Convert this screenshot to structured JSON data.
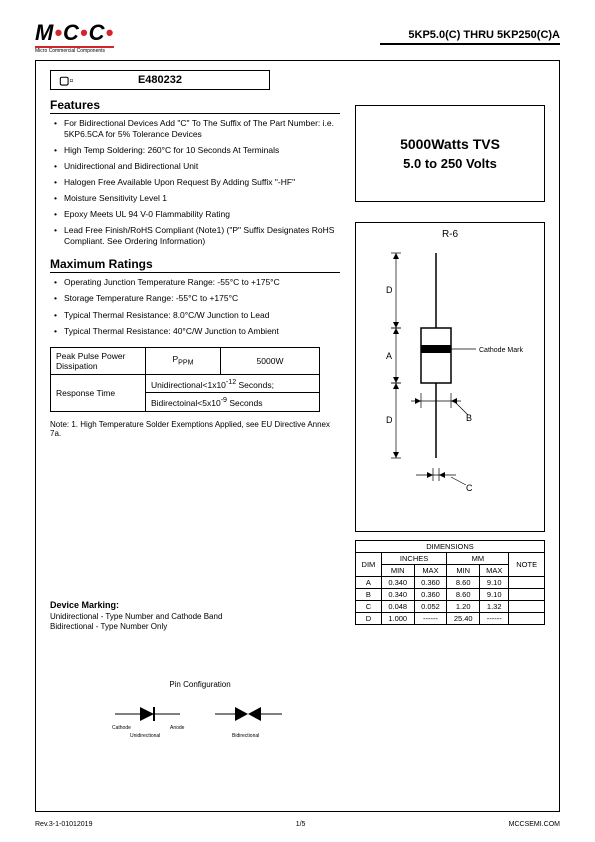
{
  "header": {
    "logo_text": "M",
    "logo_text2": "C",
    "logo_text3": "C",
    "logo_sub": "Micro Commercial Components",
    "part_range": "5KP5.0(C) THRU 5KP250(C)A"
  },
  "cert_number": "E480232",
  "sections": {
    "features_title": "Features",
    "features": [
      "For Bidirectional Devices Add \"C\" To The Suffix of The Part Number: i.e. 5KP6.5CA for 5% Tolerance Devices",
      "High Temp Soldering: 260°C for 10 Seconds At Terminals",
      "Unidirectional and Bidirectional Unit",
      "Halogen Free Available Upon Request By Adding Suffix \"-HF\"",
      "Moisture Sensitivity Level 1",
      "Epoxy Meets UL 94 V-0 Flammability Rating",
      "Lead Free Finish/RoHS Compliant (Note1) (\"P\" Suffix Designates RoHS Compliant. See Ordering Information)"
    ],
    "ratings_title": "Maximum Ratings",
    "ratings": [
      "Operating Junction Temperature Range: -55°C to +175°C",
      "Storage Temperature Range: -55°C to +175°C",
      "Typical Thermal Resistance: 8.0°C/W Junction to Lead",
      "Typical Thermal Resistance: 40°C/W Junction to Ambient"
    ]
  },
  "spec_table": {
    "r1c1": "Peak Pulse Power Dissipation",
    "r1c2": "P",
    "r1c2_sub": "PPM",
    "r1c3": "5000W",
    "r2c1": "Response Time",
    "r2c2a": "Unidirectional<1x10",
    "r2c2a_sup": "-12",
    "r2c2a_end": " Seconds;",
    "r2c2b": "Bidirectoinal<5x10",
    "r2c2b_sup": "-9",
    "r2c2b_end": " Seconds"
  },
  "note": "Note: 1. High Temperature Solder Exemptions Applied, see EU Directive Annex 7a.",
  "title_box": {
    "line1": "5000Watts  TVS",
    "line2": "5.0 to 250 Volts"
  },
  "package": {
    "label": "R-6",
    "cathode_label": "Cathode Mark"
  },
  "dim_table": {
    "title": "DIMENSIONS",
    "headers": {
      "dim": "DIM",
      "inches": "INCHES",
      "mm": "MM",
      "note": "NOTE",
      "min": "MIN",
      "max": "MAX"
    },
    "rows": [
      {
        "dim": "A",
        "in_min": "0.340",
        "in_max": "0.360",
        "mm_min": "8.60",
        "mm_max": "9.10",
        "note": ""
      },
      {
        "dim": "B",
        "in_min": "0.340",
        "in_max": "0.360",
        "mm_min": "8.60",
        "mm_max": "9.10",
        "note": ""
      },
      {
        "dim": "C",
        "in_min": "0.048",
        "in_max": "0.052",
        "mm_min": "1.20",
        "mm_max": "1.32",
        "note": ""
      },
      {
        "dim": "D",
        "in_min": "1.000",
        "in_max": "------",
        "mm_min": "25.40",
        "mm_max": "------",
        "note": ""
      }
    ]
  },
  "device_marking": {
    "title": "Device Marking:",
    "line1": "Unidirectional - Type Number and Cathode Band",
    "line2": "Bidirectional - Type Number Only"
  },
  "pin_config": {
    "title": "Pin Configuration",
    "uni": "Unidirectional",
    "bi": "Bidirectional",
    "cathode": "Cathode",
    "anode": "Anode"
  },
  "footer": {
    "rev": "Rev.3-1-01012019",
    "page": "1/5",
    "site": "MCCSEMI.COM"
  },
  "colors": {
    "accent": "#d4252c",
    "text": "#000000",
    "bg": "#ffffff",
    "border": "#000000"
  }
}
